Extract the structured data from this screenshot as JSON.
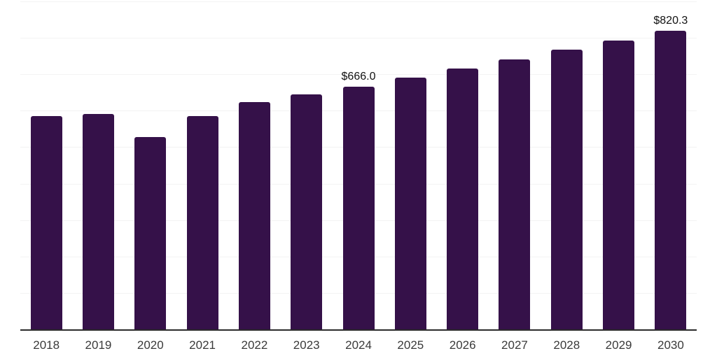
{
  "chart_data": {
    "type": "bar",
    "title": "",
    "xlabel": "",
    "ylabel": "",
    "categories": [
      "2018",
      "2019",
      "2020",
      "2021",
      "2022",
      "2023",
      "2024",
      "2025",
      "2026",
      "2027",
      "2028",
      "2029",
      "2030"
    ],
    "values": [
      585,
      592,
      527,
      585,
      623,
      644,
      666.0,
      691,
      716,
      741,
      767,
      793,
      820.3
    ],
    "value_labels": [
      null,
      null,
      null,
      null,
      null,
      null,
      "$666.0",
      null,
      null,
      null,
      null,
      null,
      "$820.3"
    ],
    "ylim": [
      0,
      900
    ],
    "grid_step": 100,
    "grid": true,
    "legend": false,
    "bar_color": "#351149",
    "axis_line_color": "#2b2b2b",
    "gridline_color": "#f3f3f3",
    "tick_label_color": "#3a3a3a",
    "value_label_color": "#111111",
    "background_color": "#ffffff"
  }
}
